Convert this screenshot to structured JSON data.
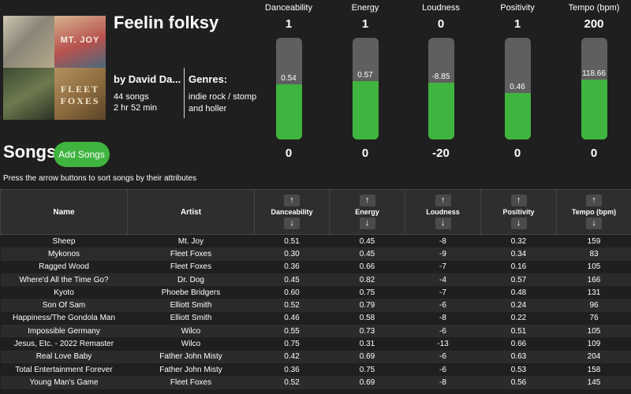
{
  "playlist": {
    "title": "Feelin folksy",
    "by_line": "by David Da...",
    "song_count": "44 songs",
    "duration": "2 hr 52 min",
    "genres_label": "Genres:",
    "genres": "indie rock / stomp and holler",
    "cover_texts": [
      "MT. JOY",
      "FLEET FOXES"
    ]
  },
  "meters": [
    {
      "name": "Danceability",
      "max": "1",
      "min": "0",
      "value": "0.54",
      "fill_fraction": 0.54
    },
    {
      "name": "Energy",
      "max": "1",
      "min": "0",
      "value": "0.57",
      "fill_fraction": 0.57
    },
    {
      "name": "Loudness",
      "max": "0",
      "min": "-20",
      "value": "-8.85",
      "fill_fraction": 0.56
    },
    {
      "name": "Positivity",
      "max": "1",
      "min": "0",
      "value": "0.46",
      "fill_fraction": 0.46
    },
    {
      "name": "Tempo (bpm)",
      "max": "200",
      "min": "0",
      "value": "118.66",
      "fill_fraction": 0.59
    }
  ],
  "songs_section": {
    "title": "Songs",
    "add_button": "Add Songs",
    "hint": "Press the arrow buttons to sort songs by their attributes"
  },
  "table": {
    "headers": [
      "Name",
      "Artist",
      "Danceability",
      "Energy",
      "Loudness",
      "Positivity",
      "Tempo (bpm)"
    ],
    "sort_up": "↑",
    "sort_down": "↓",
    "rows": [
      [
        "Sheep",
        "Mt. Joy",
        "0.51",
        "0.45",
        "-8",
        "0.32",
        "159"
      ],
      [
        "Mykonos",
        "Fleet Foxes",
        "0.30",
        "0.45",
        "-9",
        "0.34",
        "83"
      ],
      [
        "Ragged Wood",
        "Fleet Foxes",
        "0.36",
        "0.66",
        "-7",
        "0.16",
        "105"
      ],
      [
        "Where'd All the Time Go?",
        "Dr. Dog",
        "0.45",
        "0.82",
        "-4",
        "0.57",
        "166"
      ],
      [
        "Kyoto",
        "Phoebe Bridgers",
        "0.60",
        "0.75",
        "-7",
        "0.48",
        "131"
      ],
      [
        "Son Of Sam",
        "Elliott Smith",
        "0.52",
        "0.79",
        "-6",
        "0.24",
        "96"
      ],
      [
        "Happiness/The Gondola Man",
        "Elliott Smith",
        "0.46",
        "0.58",
        "-8",
        "0.22",
        "76"
      ],
      [
        "Impossible Germany",
        "Wilco",
        "0.55",
        "0.73",
        "-6",
        "0.51",
        "105"
      ],
      [
        "Jesus, Etc. - 2022 Remaster",
        "Wilco",
        "0.75",
        "0.31",
        "-13",
        "0.66",
        "109"
      ],
      [
        "Real Love Baby",
        "Father John Misty",
        "0.42",
        "0.69",
        "-6",
        "0.63",
        "204"
      ],
      [
        "Total Entertainment Forever",
        "Father John Misty",
        "0.36",
        "0.75",
        "-6",
        "0.53",
        "158"
      ],
      [
        "Young Man's Game",
        "Fleet Foxes",
        "0.52",
        "0.69",
        "-8",
        "0.56",
        "145"
      ]
    ]
  },
  "colors": {
    "background": "#1f1f1f",
    "accent_green": "#3fb43f",
    "track_gray": "#5f5f5f",
    "header_bg": "#2e2e2e",
    "row_alt": "#2b2b2b"
  }
}
